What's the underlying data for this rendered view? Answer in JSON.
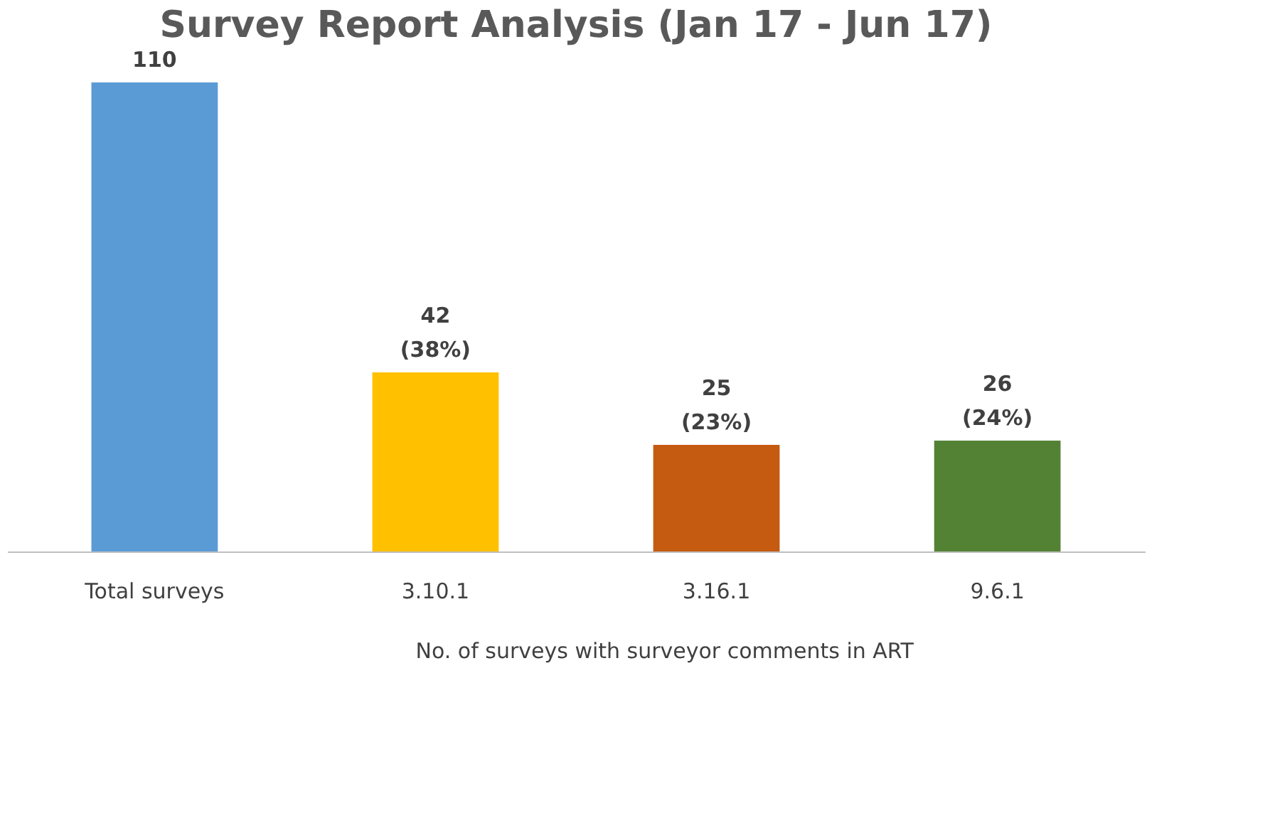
{
  "chart_data": {
    "type": "bar",
    "title": "Survey Report Analysis (Jan 17 - Jun 17)",
    "categories": [
      "Total surveys",
      "3.10.1",
      "3.16.1",
      "9.6.1"
    ],
    "values": [
      110,
      42,
      25,
      26
    ],
    "colors": [
      "#5b9bd5",
      "#ffc000",
      "#c55a11",
      "#548235"
    ],
    "value_labels": [
      "110",
      "42\n(38%)",
      "25\n(23%)",
      "26\n(24%)"
    ],
    "annotations": [
      "No. of surveys with surveyor comments in ART"
    ],
    "grid": false
  }
}
